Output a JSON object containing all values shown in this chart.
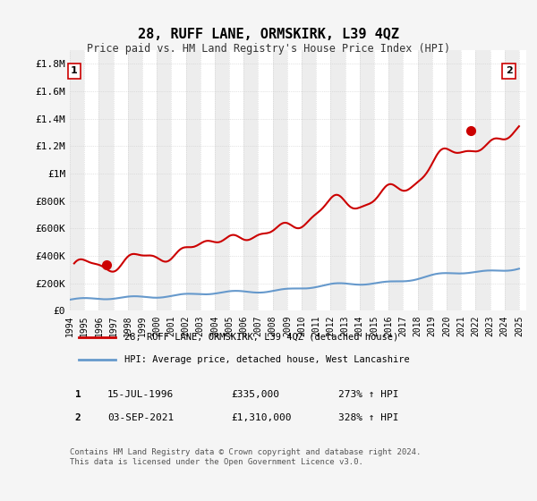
{
  "title": "28, RUFF LANE, ORMSKIRK, L39 4QZ",
  "subtitle": "Price paid vs. HM Land Registry's House Price Index (HPI)",
  "ylabel_ticks": [
    "£0",
    "£200K",
    "£400K",
    "£600K",
    "£800K",
    "£1M",
    "£1.2M",
    "£1.4M",
    "£1.6M",
    "£1.8M"
  ],
  "ytick_values": [
    0,
    200000,
    400000,
    600000,
    800000,
    1000000,
    1200000,
    1400000,
    1600000,
    1800000
  ],
  "ylim": [
    0,
    1900000
  ],
  "xlim_start": 1994.0,
  "xlim_end": 2025.5,
  "xtick_years": [
    1994,
    1995,
    1996,
    1997,
    1998,
    1999,
    2000,
    2001,
    2002,
    2003,
    2004,
    2005,
    2006,
    2007,
    2008,
    2009,
    2010,
    2011,
    2012,
    2013,
    2014,
    2015,
    2016,
    2017,
    2018,
    2019,
    2020,
    2021,
    2022,
    2023,
    2024,
    2025
  ],
  "sale1_x": 1996.54,
  "sale1_y": 335000,
  "sale1_label": "1",
  "sale1_date": "15-JUL-1996",
  "sale1_price": "£335,000",
  "sale1_hpi": "273% ↑ HPI",
  "sale2_x": 2021.67,
  "sale2_y": 1310000,
  "sale2_label": "2",
  "sale2_date": "03-SEP-2021",
  "sale2_price": "£1,310,000",
  "sale2_hpi": "328% ↑ HPI",
  "hpi_color": "#6699cc",
  "price_color": "#cc0000",
  "sale_marker_color": "#cc0000",
  "legend1_label": "28, RUFF LANE, ORMSKIRK, L39 4QZ (detached house)",
  "legend2_label": "HPI: Average price, detached house, West Lancashire",
  "footer": "Contains HM Land Registry data © Crown copyright and database right 2024.\nThis data is licensed under the Open Government Licence v3.0.",
  "bg_color": "#f5f5f5",
  "plot_bg_color": "#ffffff",
  "grid_color": "#cccccc",
  "hatch_color": "#dddddd"
}
